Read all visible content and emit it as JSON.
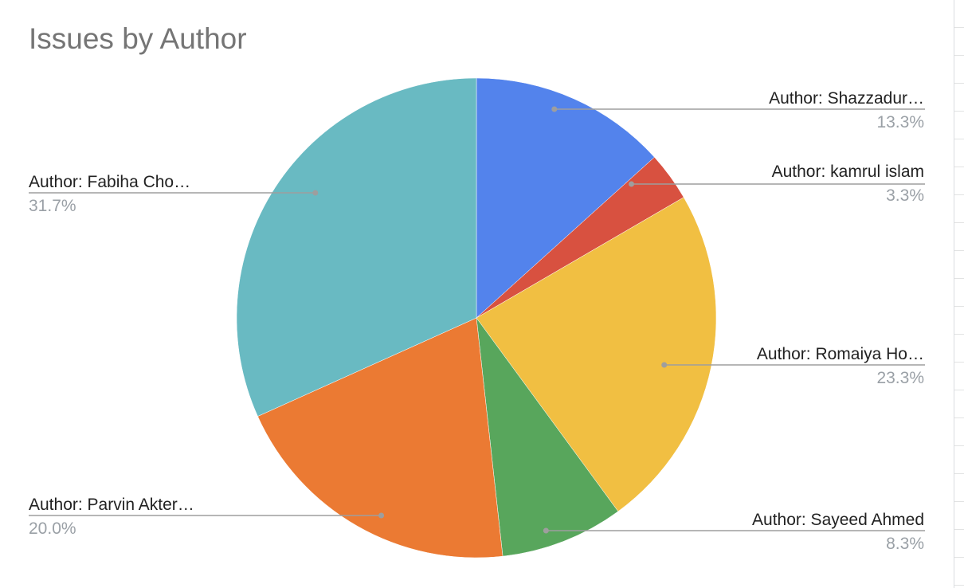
{
  "chart_data": {
    "type": "pie",
    "title": "Issues by Author",
    "start_angle_deg": 0,
    "direction": "clockwise",
    "slices": [
      {
        "label": "Author: Shazzadur…",
        "percent_label": "13.3%",
        "value": 13.3,
        "color": "#5383EC",
        "label_side": "right"
      },
      {
        "label": "Author: kamrul islam",
        "percent_label": "3.3%",
        "value": 3.3,
        "color": "#D85140",
        "label_side": "right"
      },
      {
        "label": "Author: Romaiya Ho…",
        "percent_label": "23.3%",
        "value": 23.3,
        "color": "#F1BF42",
        "label_side": "right"
      },
      {
        "label": "Author: Sayeed Ahmed",
        "percent_label": "8.3%",
        "value": 8.3,
        "color": "#58A65C",
        "label_side": "right"
      },
      {
        "label": "Author: Parvin Akter…",
        "percent_label": "20.0%",
        "value": 20.0,
        "color": "#EB7A33",
        "label_side": "left"
      },
      {
        "label": "Author: Fabiha Cho…",
        "percent_label": "31.7%",
        "value": 31.7,
        "color": "#69BAC2",
        "label_side": "left"
      }
    ],
    "legend": "none (leader-line labels)",
    "colors": {
      "label_text": "#222222",
      "percent_text": "#9AA0A6",
      "leader_line": "#9E9E9E",
      "title": "#757575"
    }
  }
}
